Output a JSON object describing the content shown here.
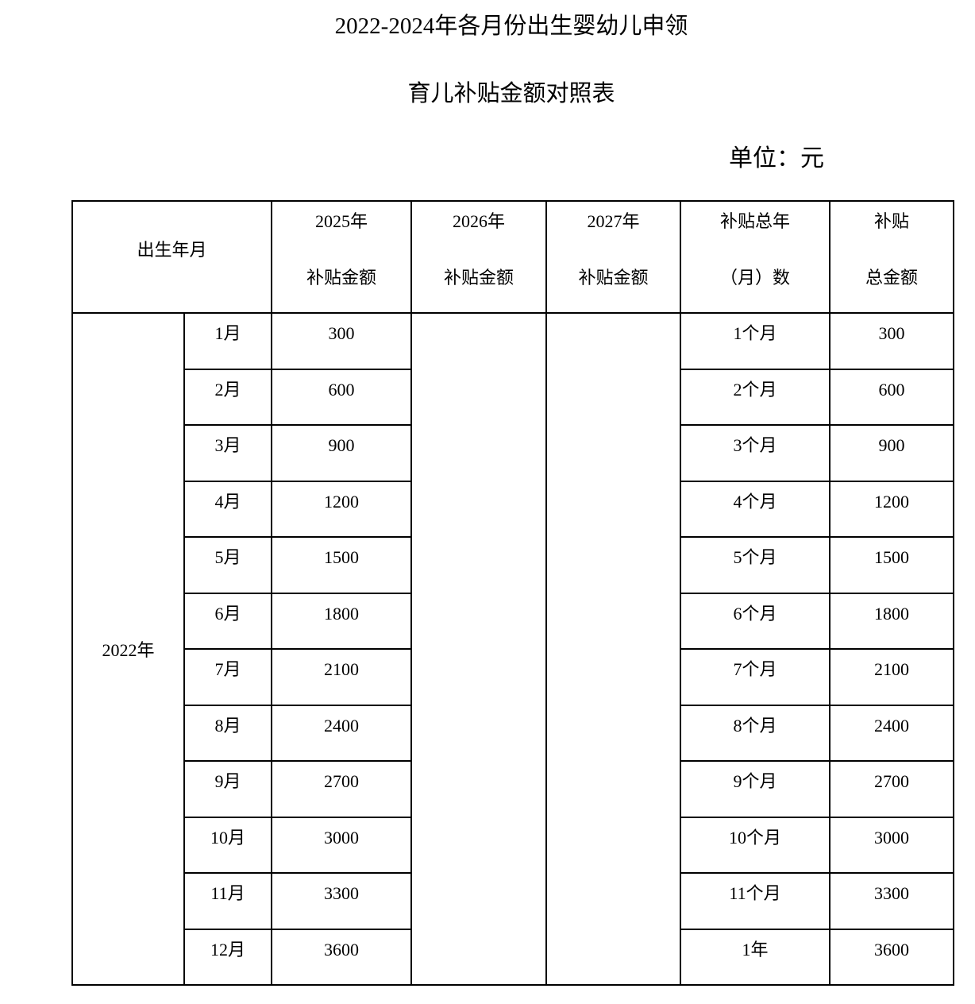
{
  "title_line1": "2022-2024年各月份出生婴幼儿申领",
  "title_line2": "育儿补贴金额对照表",
  "unit": "单位：元",
  "headers": {
    "birth": "出生年月",
    "y2025_line1": "2025年",
    "y2025_line2": "补贴金额",
    "y2026_line1": "2026年",
    "y2026_line2": "补贴金额",
    "y2027_line1": "2027年",
    "y2027_line2": "补贴金额",
    "total_period_line1": "补贴总年",
    "total_period_line2": "（月）数",
    "total_amount_line1": "补贴",
    "total_amount_line2": "总金额"
  },
  "year_label": "2022年",
  "rows": [
    {
      "month": "1月",
      "y2025": "300",
      "period": "1个月",
      "total": "300"
    },
    {
      "month": "2月",
      "y2025": "600",
      "period": "2个月",
      "total": "600"
    },
    {
      "month": "3月",
      "y2025": "900",
      "period": "3个月",
      "total": "900"
    },
    {
      "month": "4月",
      "y2025": "1200",
      "period": "4个月",
      "total": "1200"
    },
    {
      "month": "5月",
      "y2025": "1500",
      "period": "5个月",
      "total": "1500"
    },
    {
      "month": "6月",
      "y2025": "1800",
      "period": "6个月",
      "total": "1800"
    },
    {
      "month": "7月",
      "y2025": "2100",
      "period": "7个月",
      "total": "2100"
    },
    {
      "month": "8月",
      "y2025": "2400",
      "period": "8个月",
      "total": "2400"
    },
    {
      "month": "9月",
      "y2025": "2700",
      "period": "9个月",
      "total": "2700"
    },
    {
      "month": "10月",
      "y2025": "3000",
      "period": "10个月",
      "total": "3000"
    },
    {
      "month": "11月",
      "y2025": "3300",
      "period": "11个月",
      "total": "3300"
    },
    {
      "month": "12月",
      "y2025": "3600",
      "period": "1年",
      "total": "3600"
    }
  ]
}
